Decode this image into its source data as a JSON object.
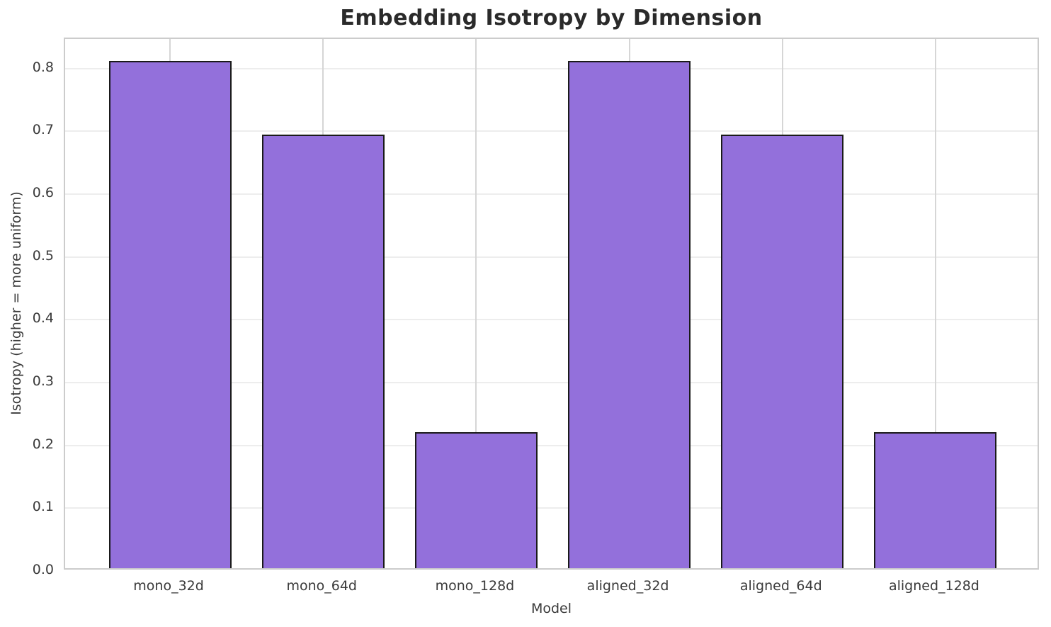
{
  "chart_data": {
    "type": "bar",
    "title": "Embedding Isotropy by Dimension",
    "xlabel": "Model",
    "ylabel": "Isotropy (higher = more uniform)",
    "categories": [
      "mono_32d",
      "mono_64d",
      "mono_128d",
      "aligned_32d",
      "aligned_64d",
      "aligned_128d"
    ],
    "values": [
      0.807,
      0.69,
      0.216,
      0.807,
      0.69,
      0.216
    ],
    "ylim": [
      0,
      0.847
    ],
    "yticks": [
      0.0,
      0.1,
      0.2,
      0.3,
      0.4,
      0.5,
      0.6,
      0.7,
      0.8
    ],
    "grid": true,
    "legend": null,
    "bar_color": "#9370DB",
    "bar_edge_color": "#1a1a1a",
    "hgrid_color": "#ededed",
    "vgrid_color": "#d6d6d6",
    "spine_color": "#cccccc",
    "bar_width_fraction": 0.8,
    "outer_pad_units": 0.685
  }
}
